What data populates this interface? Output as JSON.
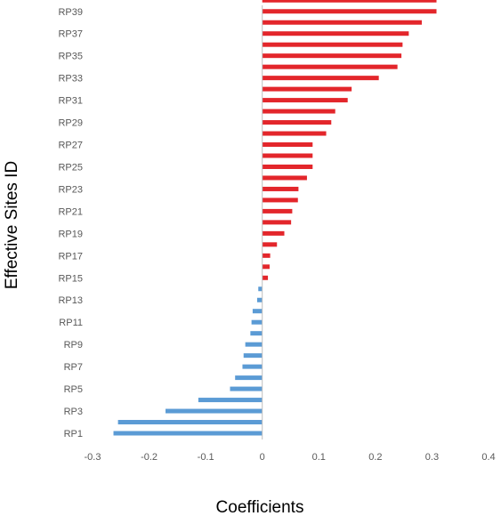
{
  "chart_data": {
    "type": "bar",
    "orientation": "horizontal",
    "title": "",
    "xlabel": "Coefficients",
    "ylabel": "Effective Sites ID",
    "xlim": [
      -0.3,
      0.4
    ],
    "x_ticks": [
      "-0.3",
      "-0.2",
      "-0.1",
      "0",
      "0.1",
      "0.2",
      "0.3",
      "0.4"
    ],
    "x_tick_values": [
      -0.3,
      -0.2,
      -0.1,
      0,
      0.1,
      0.2,
      0.3,
      0.4
    ],
    "y_tick_labels": [
      "RP1",
      "RP3",
      "RP5",
      "RP7",
      "RP9",
      "RP11",
      "RP13",
      "RP15",
      "RP17",
      "RP19",
      "RP21",
      "RP23",
      "RP25",
      "RP27",
      "RP29",
      "RP31",
      "RP33",
      "RP35",
      "RP37",
      "RP39"
    ],
    "categories": [
      "RP1",
      "RP2",
      "RP3",
      "RP4",
      "RP5",
      "RP6",
      "RP7",
      "RP8",
      "RP9",
      "RP10",
      "RP11",
      "RP12",
      "RP13",
      "RP14",
      "RP15",
      "RP16",
      "RP17",
      "RP18",
      "RP19",
      "RP20",
      "RP21",
      "RP22",
      "RP23",
      "RP24",
      "RP25",
      "RP26",
      "RP27",
      "RP28",
      "RP29",
      "RP30",
      "RP31",
      "RP32",
      "RP33",
      "RP34",
      "RP35",
      "RP36",
      "RP37",
      "RP38",
      "RP39",
      "RP40"
    ],
    "values": [
      -0.263,
      -0.255,
      -0.171,
      -0.113,
      -0.057,
      -0.048,
      -0.035,
      -0.033,
      -0.03,
      -0.021,
      -0.019,
      -0.017,
      -0.009,
      -0.007,
      0.01,
      0.013,
      0.014,
      0.026,
      0.039,
      0.051,
      0.053,
      0.063,
      0.064,
      0.079,
      0.089,
      0.089,
      0.089,
      0.113,
      0.122,
      0.129,
      0.151,
      0.158,
      0.206,
      0.239,
      0.246,
      0.248,
      0.259,
      0.282,
      0.308,
      0.308
    ],
    "grid": false,
    "legend": "none",
    "colors": {
      "positive": "#e3262b",
      "negative": "#5b9bd5",
      "zero_line": "#bfbfbf",
      "tick_text": "#595959"
    }
  }
}
